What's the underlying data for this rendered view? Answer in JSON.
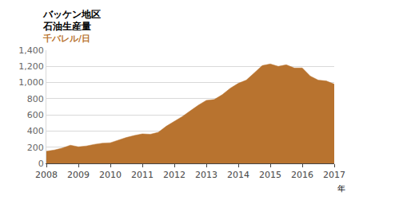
{
  "chart_data": {
    "type": "area",
    "title": "バッケン地区",
    "subtitle": "石油生産量",
    "y_label": "千バレル/日",
    "x_label": "年",
    "color": "#b8732f",
    "x": [
      2008,
      2008.25,
      2008.5,
      2008.75,
      2009,
      2009.25,
      2009.5,
      2009.75,
      2010,
      2010.25,
      2010.5,
      2010.75,
      2011,
      2011.25,
      2011.5,
      2011.75,
      2012,
      2012.25,
      2012.5,
      2012.75,
      2013,
      2013.25,
      2013.5,
      2013.75,
      2014,
      2014.25,
      2014.5,
      2014.75,
      2015,
      2015.25,
      2015.5,
      2015.75,
      2016,
      2016.25,
      2016.5,
      2016.75,
      2017
    ],
    "values": [
      150,
      165,
      190,
      225,
      205,
      215,
      235,
      250,
      255,
      290,
      320,
      345,
      365,
      360,
      385,
      460,
      520,
      580,
      650,
      720,
      780,
      790,
      850,
      930,
      990,
      1030,
      1120,
      1210,
      1230,
      1200,
      1220,
      1180,
      1180,
      1080,
      1030,
      1020,
      980
    ],
    "xlim": [
      2008,
      2017
    ],
    "xticks": [
      2008,
      2009,
      2010,
      2011,
      2012,
      2013,
      2014,
      2015,
      2016,
      2017
    ],
    "ylim": [
      0,
      1400
    ],
    "yticks": [
      0,
      200,
      400,
      600,
      800,
      {
        "value": 1000,
        "label": "1,000"
      },
      {
        "value": 1200,
        "label": "1,200"
      },
      {
        "value": 1400,
        "label": "1,400"
      }
    ],
    "grid": true
  }
}
